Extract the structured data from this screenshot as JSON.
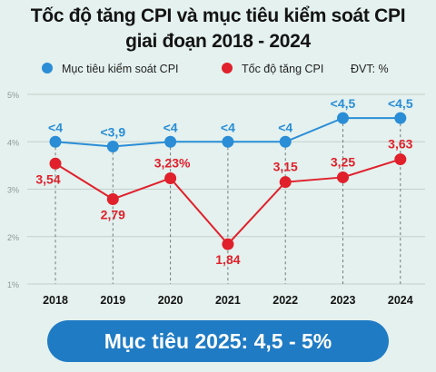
{
  "title_lines": [
    "Tốc độ tăng CPI và mục tiêu kiểm soát CPI",
    "giai đoạn 2018 - 2024"
  ],
  "legend": {
    "target_label": "Mục tiêu kiểm soát CPI",
    "growth_label": "Tốc độ tăng CPI",
    "unit": "ĐVT: %"
  },
  "footer_label": "Mục tiêu 2025: 4,5 - 5%",
  "chart_data": {
    "type": "line",
    "categories": [
      "2018",
      "2019",
      "2020",
      "2021",
      "2022",
      "2023",
      "2024"
    ],
    "series": [
      {
        "name": "Mục tiêu kiểm soát CPI",
        "color": "#2a8dd6",
        "values": [
          4,
          3.9,
          4,
          4,
          4,
          4.5,
          4.5
        ],
        "labels": [
          "<4",
          "<3,9",
          "<4",
          "<4",
          "<4",
          "<4,5",
          "<4,5"
        ]
      },
      {
        "name": "Tốc độ tăng CPI",
        "color": "#e0202b",
        "values": [
          3.54,
          2.79,
          3.23,
          1.84,
          3.15,
          3.25,
          3.63
        ],
        "labels": [
          "3,54",
          "2,79",
          "3,23%",
          "1,84",
          "3,15",
          "3,25",
          "3,63"
        ]
      }
    ],
    "yticks": [
      1,
      2,
      3,
      4,
      5
    ],
    "ytick_labels": [
      "1%",
      "2%",
      "3%",
      "4%",
      "5%"
    ],
    "ylim": [
      1,
      5
    ],
    "grid": true
  }
}
